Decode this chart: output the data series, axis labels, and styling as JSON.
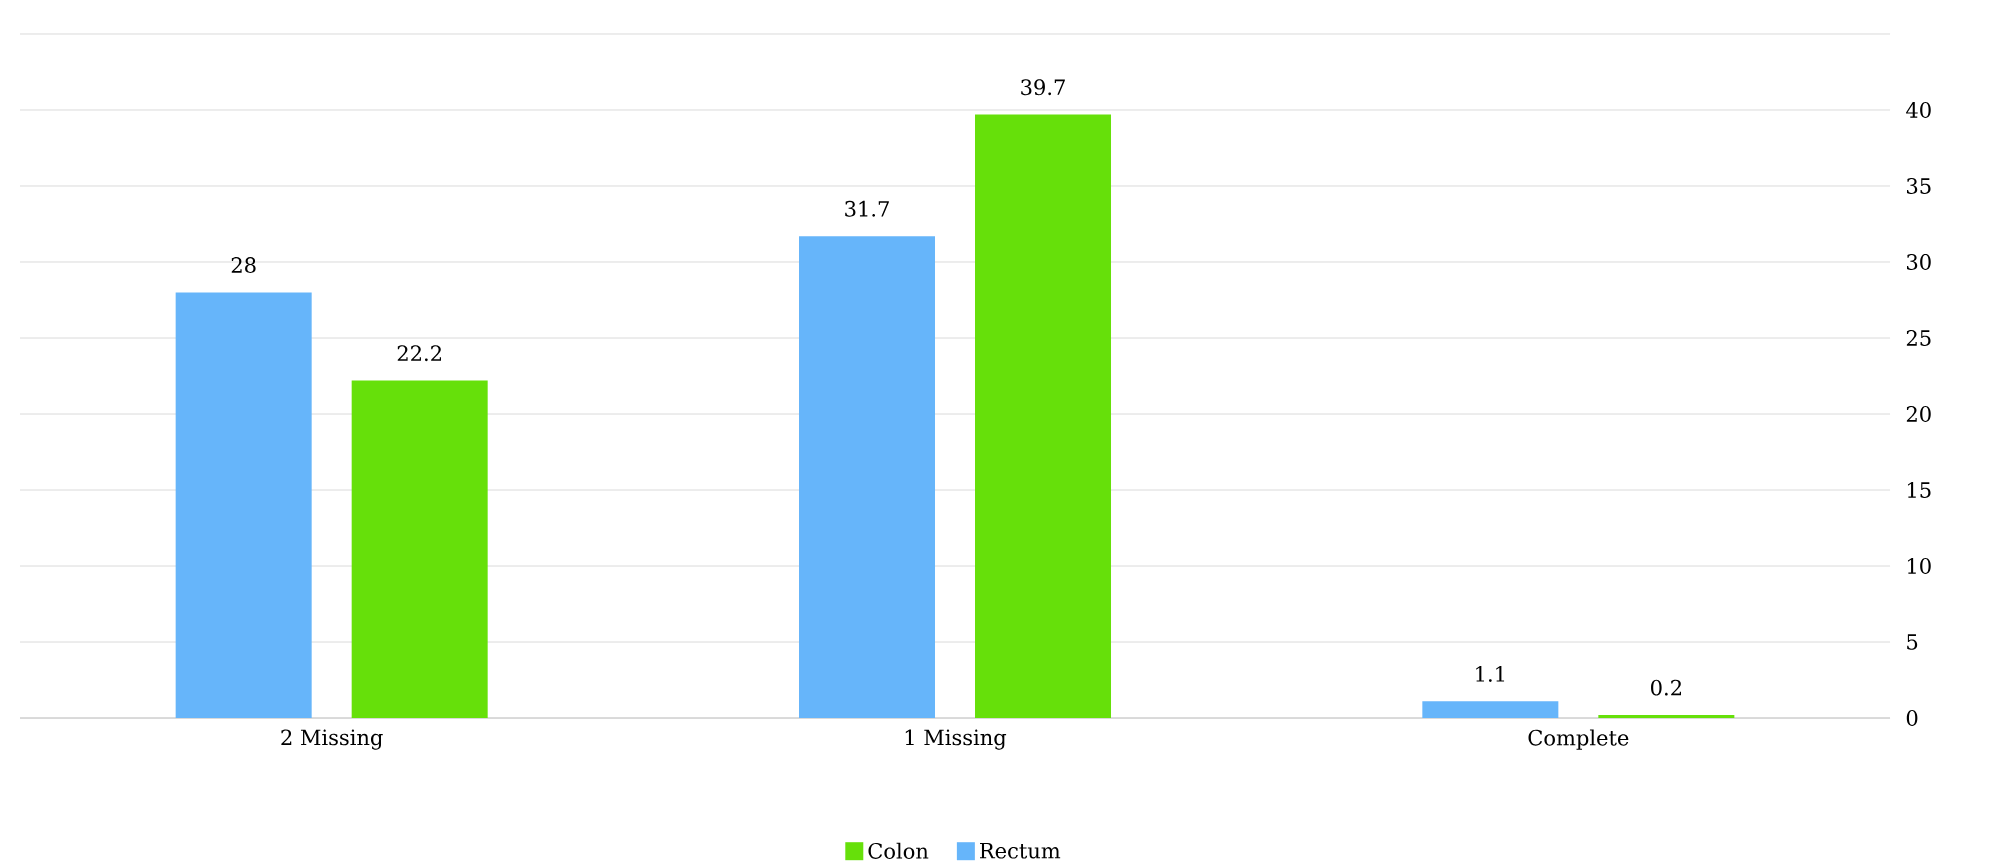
{
  "chart_data": {
    "type": "bar",
    "categories": [
      "2 Missing",
      "1 Missing",
      "Complete"
    ],
    "series": [
      {
        "name": "Rectum",
        "color": "#66b5fa",
        "values": [
          28,
          31.7,
          1.1
        ]
      },
      {
        "name": "Colon",
        "color": "#66e00a",
        "values": [
          22.2,
          39.7,
          0.2
        ]
      }
    ],
    "ylim": [
      0,
      45
    ],
    "yticks": [
      0,
      5,
      10,
      15,
      20,
      25,
      30,
      35,
      40,
      {
        "value": 45,
        "label": null
      }
    ],
    "grid": "y",
    "legend": "bottom",
    "data_labels": true
  }
}
